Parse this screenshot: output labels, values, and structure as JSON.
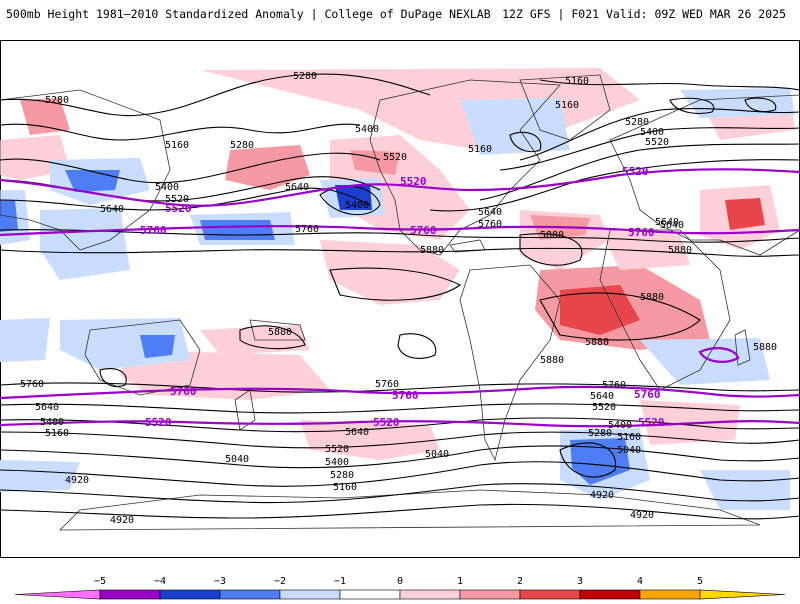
{
  "title": {
    "left": "500mb Height 1981–2010 Standardized Anomaly | College of DuPage NEXLAB",
    "right": "12Z GFS | F021 Valid: 09Z WED MAR 26 2025"
  },
  "map": {
    "type": "global-height-anomaly",
    "contour_interval": 120,
    "contour_labels": [
      {
        "id": "c1",
        "text": "5280"
      },
      {
        "id": "c2",
        "text": "5160"
      },
      {
        "id": "c3",
        "text": "5160"
      },
      {
        "id": "c4",
        "text": "5280"
      },
      {
        "id": "c5",
        "text": "5160"
      },
      {
        "id": "c6",
        "text": "5280"
      },
      {
        "id": "c7",
        "text": "5400"
      },
      {
        "id": "c8",
        "text": "5520"
      },
      {
        "id": "c9",
        "text": "5400"
      },
      {
        "id": "c10",
        "text": "5520"
      },
      {
        "id": "c11",
        "text": "5160"
      },
      {
        "id": "c12",
        "text": "5280"
      },
      {
        "id": "c13",
        "text": "5400"
      },
      {
        "id": "c14",
        "text": "5520"
      },
      {
        "id": "c15",
        "text": "5640"
      },
      {
        "id": "c16",
        "text": "5640"
      },
      {
        "id": "c17",
        "text": "5400"
      },
      {
        "id": "c18",
        "text": "5640"
      },
      {
        "id": "c19",
        "text": "5760"
      },
      {
        "id": "c20",
        "text": "5640"
      },
      {
        "id": "c21",
        "text": "5760"
      },
      {
        "id": "c22",
        "text": "5880"
      },
      {
        "id": "c23",
        "text": "5880"
      },
      {
        "id": "c24",
        "text": "5640"
      },
      {
        "id": "c25",
        "text": "5880"
      },
      {
        "id": "c26",
        "text": "5880"
      },
      {
        "id": "c27",
        "text": "5880"
      },
      {
        "id": "c28",
        "text": "5880"
      },
      {
        "id": "c29",
        "text": "5880"
      },
      {
        "id": "c30",
        "text": "5880"
      },
      {
        "id": "c31",
        "text": "5760"
      },
      {
        "id": "c32",
        "text": "5640"
      },
      {
        "id": "c33",
        "text": "5400"
      },
      {
        "id": "c34",
        "text": "5160"
      },
      {
        "id": "c35",
        "text": "5760"
      },
      {
        "id": "c36",
        "text": "5640"
      },
      {
        "id": "c37",
        "text": "5520"
      },
      {
        "id": "c38",
        "text": "5400"
      },
      {
        "id": "c39",
        "text": "5280"
      },
      {
        "id": "c40",
        "text": "5160"
      },
      {
        "id": "c41",
        "text": "5040"
      },
      {
        "id": "c42",
        "text": "5040"
      },
      {
        "id": "c43",
        "text": "4920"
      },
      {
        "id": "c44",
        "text": "4920"
      },
      {
        "id": "c45",
        "text": "5760"
      },
      {
        "id": "c46",
        "text": "5640"
      },
      {
        "id": "c47",
        "text": "5520"
      },
      {
        "id": "c48",
        "text": "5400"
      },
      {
        "id": "c49",
        "text": "5280"
      },
      {
        "id": "c50",
        "text": "5160"
      },
      {
        "id": "c51",
        "text": "5040"
      },
      {
        "id": "c52",
        "text": "4920"
      },
      {
        "id": "c53",
        "text": "4920"
      }
    ],
    "purple_labels": [
      {
        "id": "p1",
        "text": "5520"
      },
      {
        "id": "p2",
        "text": "5520"
      },
      {
        "id": "p3",
        "text": "5520"
      },
      {
        "id": "p4",
        "text": "5760"
      },
      {
        "id": "p5",
        "text": "5760"
      },
      {
        "id": "p6",
        "text": "5760"
      },
      {
        "id": "p7",
        "text": "5760"
      },
      {
        "id": "p8",
        "text": "5760"
      },
      {
        "id": "p9",
        "text": "5760"
      },
      {
        "id": "p10",
        "text": "5520"
      },
      {
        "id": "p11",
        "text": "5520"
      },
      {
        "id": "p12",
        "text": "5520"
      }
    ],
    "colors": {
      "contour": "#000000",
      "highlight_contour": "#9a00c8",
      "land_outline": "#333333"
    }
  },
  "colorbar": {
    "ticks": [
      "−5",
      "−4",
      "−3",
      "−2",
      "−1",
      "0",
      "1",
      "2",
      "3",
      "4",
      "5"
    ],
    "colors": [
      "#ff70ff",
      "#9a00c8",
      "#1c3fcf",
      "#4f7df5",
      "#c8ddff",
      "#ffffff",
      "#ffd0d8",
      "#f59aa3",
      "#e8464a",
      "#c00000",
      "#ffa500",
      "#ffd700"
    ]
  }
}
